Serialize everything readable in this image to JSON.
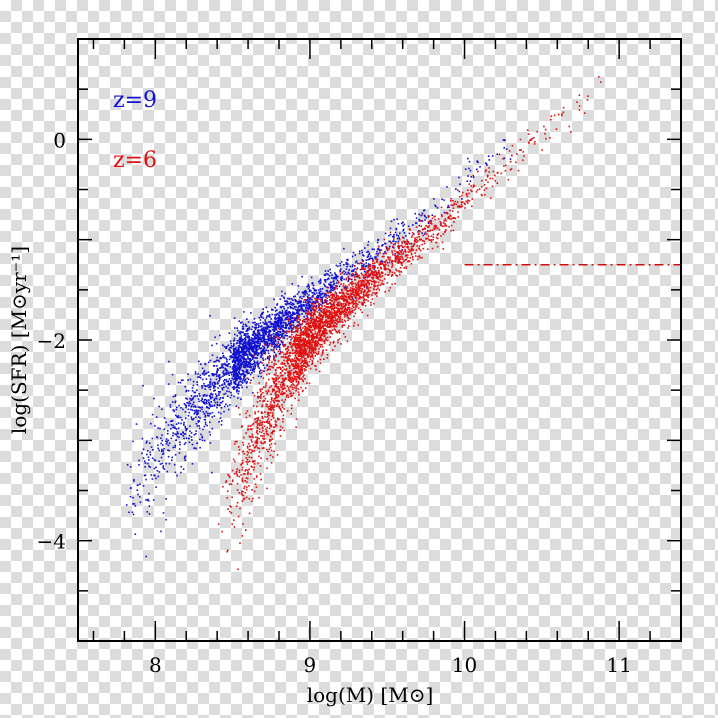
{
  "chart_data": {
    "type": "scatter",
    "title": "",
    "xlabel": "log(M)  [M⊙]",
    "ylabel": "log(SFR)  [M⊙yr⁻¹]",
    "xlim": [
      7.5,
      11.4
    ],
    "ylim": [
      -5,
      1
    ],
    "x_major_ticks": [
      8,
      9,
      10,
      11
    ],
    "x_tick_labels": [
      "8",
      "9",
      "10",
      "11"
    ],
    "x_minor_step": 0.2,
    "y_major_ticks": [
      0,
      -2,
      -4
    ],
    "y_tick_labels": [
      "0",
      "−2",
      "−4"
    ],
    "y_minor_step": 0.5,
    "grid": false,
    "legend_placement": "top-left",
    "series": [
      {
        "name": "z=9",
        "color": "#1010d0",
        "mass_range": [
          7.75,
          10.3
        ],
        "mass_peak": 8.5,
        "n_points": 2600,
        "ridge": [
          [
            7.8,
            -3.6
          ],
          [
            8.0,
            -3.2
          ],
          [
            8.2,
            -2.75
          ],
          [
            8.4,
            -2.4
          ],
          [
            8.6,
            -2.1
          ],
          [
            8.8,
            -1.85
          ],
          [
            9.0,
            -1.6
          ],
          [
            9.2,
            -1.38
          ],
          [
            9.5,
            -1.05
          ],
          [
            9.8,
            -0.7
          ],
          [
            10.2,
            -0.1
          ]
        ],
        "scatter_sigma": [
          [
            7.8,
            0.35
          ],
          [
            8.2,
            0.3
          ],
          [
            8.6,
            0.18
          ],
          [
            9.0,
            0.12
          ],
          [
            10.2,
            0.1
          ]
        ]
      },
      {
        "name": "z=6",
        "color": "#e01010",
        "mass_range": [
          8.4,
          11.15
        ],
        "mass_peak": 8.9,
        "n_points": 3000,
        "ridge": [
          [
            8.45,
            -3.75
          ],
          [
            8.6,
            -3.1
          ],
          [
            8.75,
            -2.55
          ],
          [
            8.9,
            -2.2
          ],
          [
            9.0,
            -1.95
          ],
          [
            9.2,
            -1.65
          ],
          [
            9.5,
            -1.25
          ],
          [
            9.8,
            -0.9
          ],
          [
            10.0,
            -0.6
          ],
          [
            10.4,
            -0.05
          ],
          [
            10.8,
            0.4
          ],
          [
            11.1,
            0.75
          ]
        ],
        "scatter_sigma": [
          [
            8.45,
            0.35
          ],
          [
            8.7,
            0.35
          ],
          [
            9.0,
            0.18
          ],
          [
            9.5,
            0.12
          ],
          [
            11.1,
            0.1
          ]
        ]
      }
    ],
    "reference_line": {
      "style": "dash-dot",
      "color": "#cc1010",
      "y": -1.25,
      "x_range": [
        10.0,
        11.4
      ]
    }
  }
}
